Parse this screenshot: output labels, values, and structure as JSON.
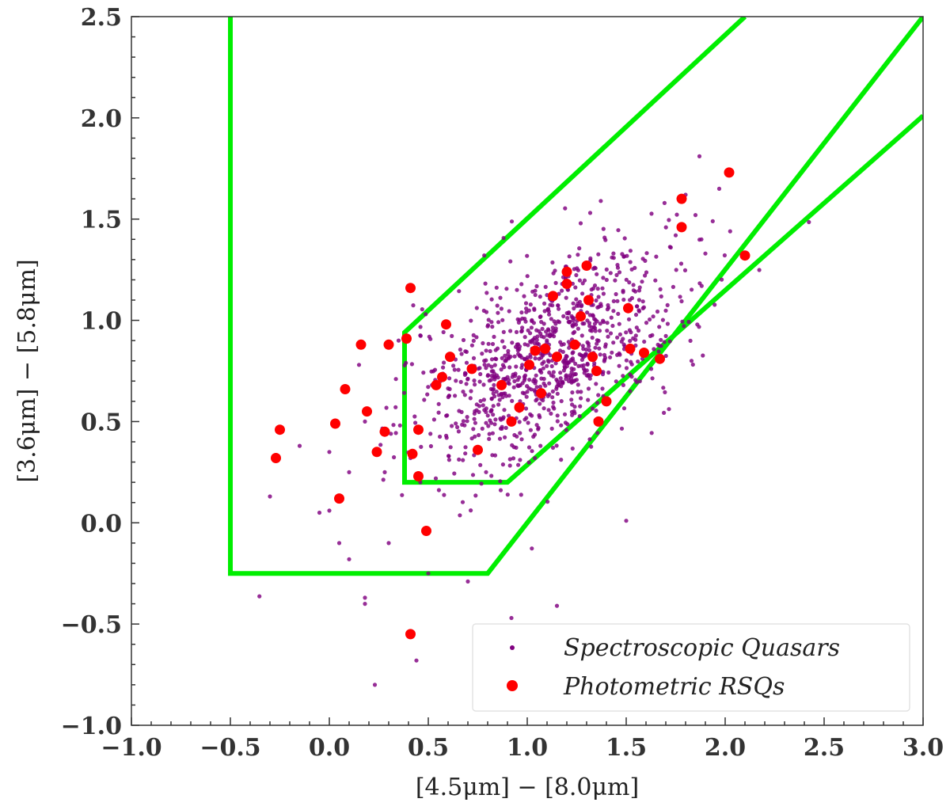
{
  "chart_data": {
    "type": "scatter",
    "xlabel": "[4.5μm] − [8.0μm]",
    "ylabel": "[3.6μm] − [5.8μm]",
    "xlim": [
      -1.0,
      3.0
    ],
    "ylim": [
      -1.0,
      2.5
    ],
    "x_ticks": [
      -1.0,
      -0.5,
      0.0,
      0.5,
      1.0,
      1.5,
      2.0,
      2.5,
      3.0
    ],
    "y_ticks": [
      -1.0,
      -0.5,
      0.0,
      0.5,
      1.0,
      1.5,
      2.0,
      2.5
    ],
    "x_tick_labels": [
      "−1.0",
      "−0.5",
      "0.0",
      "0.5",
      "1.0",
      "1.5",
      "2.0",
      "2.5",
      "3.0"
    ],
    "y_tick_labels": [
      "−1.0",
      "−0.5",
      "0.0",
      "0.5",
      "1.0",
      "1.5",
      "2.0",
      "2.5"
    ],
    "grid": false,
    "legend_position": "bottom-right",
    "colors": {
      "spectroscopic": "#800080",
      "photometric": "#ff0000",
      "wedge": "#00ee00"
    },
    "selection_regions": [
      {
        "color": "#00ee00",
        "points": [
          [
            -0.5,
            2.5
          ],
          [
            -0.5,
            -0.25
          ],
          [
            0.8,
            -0.25
          ],
          [
            3.0,
            2.5
          ]
        ]
      },
      {
        "color": "#00ee00",
        "points": [
          [
            2.1,
            2.5
          ],
          [
            0.38,
            0.94
          ],
          [
            0.38,
            0.2
          ],
          [
            0.9,
            0.2
          ],
          [
            3.0,
            2.01
          ]
        ]
      }
    ],
    "series": [
      {
        "name": "Spectroscopic Quasars",
        "marker": "small-dot",
        "cluster": {
          "count": 1000,
          "center": [
            1.1,
            0.82
          ],
          "spread": [
            0.34,
            0.27
          ],
          "correlation": 0.55,
          "seed": 7
        },
        "outliers": [
          [
            -0.3,
            0.13
          ],
          [
            -0.15,
            0.38
          ],
          [
            -0.05,
            0.05
          ],
          [
            0.0,
            0.06
          ],
          [
            0.05,
            -0.1
          ],
          [
            0.1,
            -0.18
          ],
          [
            0.18,
            -0.4
          ],
          [
            0.23,
            -0.8
          ],
          [
            0.44,
            -0.68
          ],
          [
            0.92,
            -0.47
          ],
          [
            1.15,
            -0.41
          ],
          [
            0.7,
            -0.29
          ],
          [
            0.5,
            -0.25
          ],
          [
            0.3,
            -0.1
          ],
          [
            0.15,
            0.78
          ],
          [
            0.0,
            0.35
          ],
          [
            0.1,
            0.25
          ],
          [
            1.5,
            0.01
          ],
          [
            1.8,
            1.62
          ],
          [
            1.87,
            1.81
          ],
          [
            1.85,
            1.52
          ],
          [
            1.97,
            1.65
          ],
          [
            1.75,
            1.42
          ],
          [
            1.9,
            1.33
          ],
          [
            1.88,
            1.4
          ],
          [
            1.83,
            0.8
          ],
          [
            1.52,
            0.65
          ],
          [
            0.35,
            0.9
          ],
          [
            0.28,
            0.25
          ],
          [
            0.18,
            0.5
          ]
        ]
      },
      {
        "name": "Photometric RSQs",
        "marker": "large-dot",
        "points": [
          [
            -0.27,
            0.32
          ],
          [
            -0.25,
            0.46
          ],
          [
            0.03,
            0.49
          ],
          [
            0.05,
            0.12
          ],
          [
            0.08,
            0.66
          ],
          [
            0.16,
            0.88
          ],
          [
            0.19,
            0.55
          ],
          [
            0.24,
            0.35
          ],
          [
            0.28,
            0.45
          ],
          [
            0.3,
            0.88
          ],
          [
            0.39,
            0.91
          ],
          [
            0.41,
            1.16
          ],
          [
            0.42,
            0.34
          ],
          [
            0.45,
            0.46
          ],
          [
            0.45,
            0.23
          ],
          [
            0.49,
            -0.04
          ],
          [
            0.41,
            -0.55
          ],
          [
            0.54,
            0.68
          ],
          [
            0.57,
            0.72
          ],
          [
            0.59,
            0.98
          ],
          [
            0.61,
            0.82
          ],
          [
            0.72,
            0.76
          ],
          [
            0.75,
            0.36
          ],
          [
            0.87,
            0.68
          ],
          [
            0.92,
            0.5
          ],
          [
            0.96,
            0.57
          ],
          [
            1.01,
            0.78
          ],
          [
            1.04,
            0.85
          ],
          [
            1.07,
            0.64
          ],
          [
            1.09,
            0.86
          ],
          [
            1.13,
            1.12
          ],
          [
            1.15,
            0.82
          ],
          [
            1.2,
            1.18
          ],
          [
            1.2,
            1.24
          ],
          [
            1.24,
            0.88
          ],
          [
            1.27,
            1.02
          ],
          [
            1.3,
            1.27
          ],
          [
            1.31,
            1.1
          ],
          [
            1.33,
            0.82
          ],
          [
            1.35,
            0.75
          ],
          [
            1.36,
            0.5
          ],
          [
            1.4,
            0.6
          ],
          [
            1.51,
            1.06
          ],
          [
            1.52,
            0.86
          ],
          [
            1.59,
            0.84
          ],
          [
            1.67,
            0.81
          ],
          [
            1.78,
            1.6
          ],
          [
            1.78,
            1.46
          ],
          [
            2.02,
            1.73
          ],
          [
            2.1,
            1.32
          ]
        ]
      }
    ]
  }
}
